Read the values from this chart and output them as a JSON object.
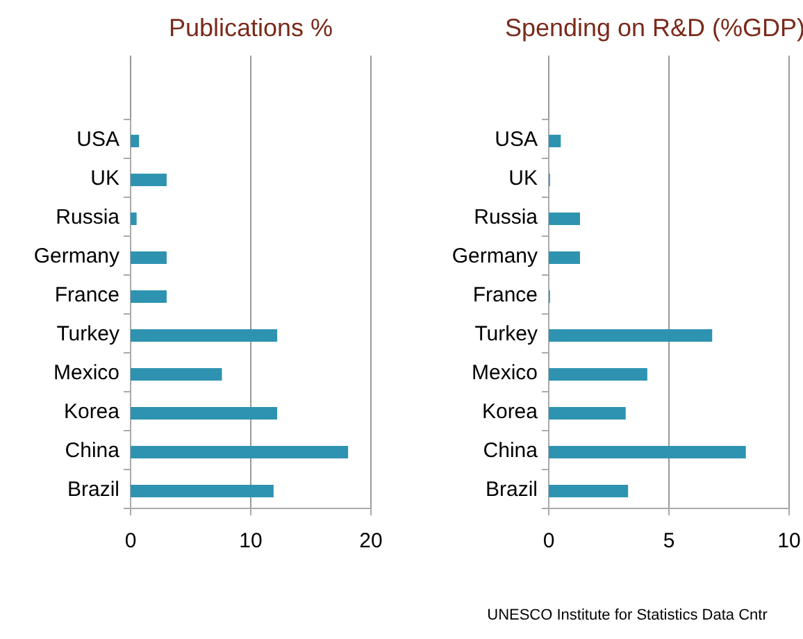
{
  "chart_data": [
    {
      "type": "bar",
      "orientation": "horizontal",
      "title": "Publications %",
      "categories": [
        "USA",
        "UK",
        "Russia",
        "Germany",
        "France",
        "Turkey",
        "Mexico",
        "Korea",
        "China",
        "Brazil"
      ],
      "values": [
        0.7,
        3.0,
        0.5,
        3.0,
        3.0,
        12.2,
        7.6,
        12.2,
        18.1,
        11.9
      ],
      "color": "#2e93b0",
      "xlim": [
        0,
        20
      ],
      "xticks": [
        0,
        10,
        20
      ],
      "grid": "x"
    },
    {
      "type": "bar",
      "orientation": "horizontal",
      "title": "Spending on R&D (%GDP)",
      "categories": [
        "USA",
        "UK",
        "Russia",
        "Germany",
        "France",
        "Turkey",
        "Mexico",
        "Korea",
        "China",
        "Brazil"
      ],
      "values": [
        0.5,
        0.05,
        1.3,
        1.3,
        0.05,
        6.8,
        4.1,
        3.2,
        8.2,
        3.3
      ],
      "color": "#2e93b0",
      "xlim": [
        0,
        10
      ],
      "xticks": [
        0,
        5,
        10
      ],
      "grid": "x",
      "annotations": [
        "UNESCO Institute for Statistics Data Cntr"
      ]
    }
  ]
}
